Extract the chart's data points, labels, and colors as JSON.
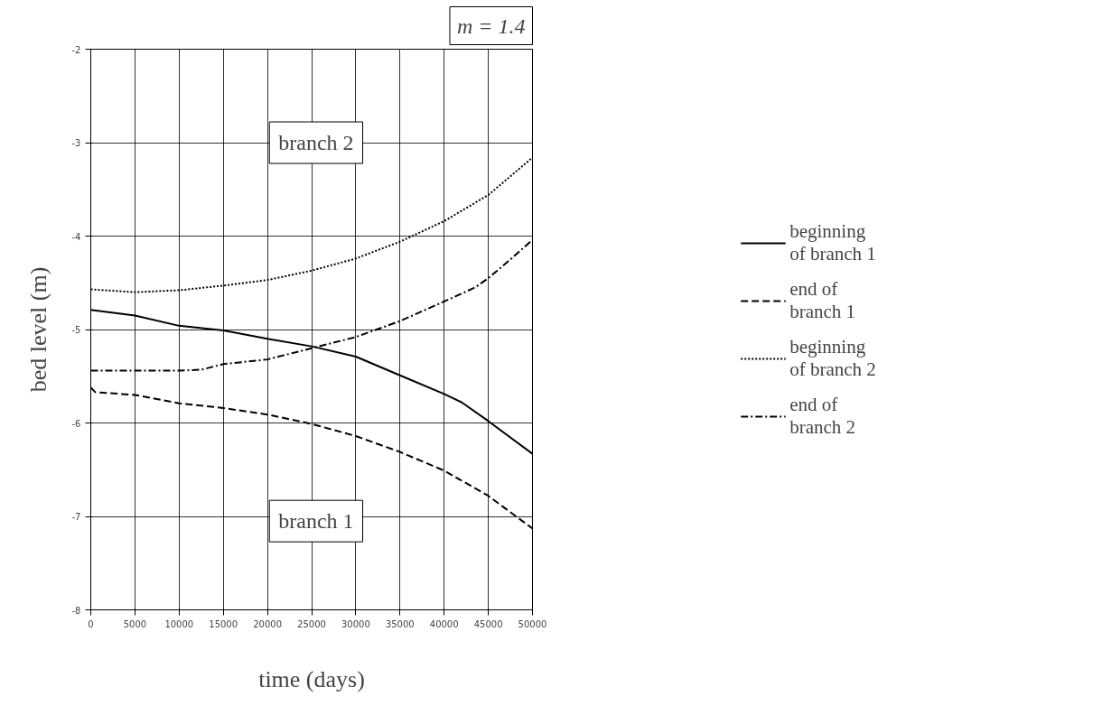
{
  "chart_data": {
    "type": "line",
    "xlabel": "time (days)",
    "ylabel": "bed level (m)",
    "xlim": [
      0,
      50000
    ],
    "xticks": [
      0,
      5000,
      10000,
      15000,
      20000,
      25000,
      30000,
      35000,
      40000,
      45000,
      50000
    ],
    "ylim": [
      -8,
      -2
    ],
    "yticks": [
      -8,
      -7,
      -6,
      -5,
      -4,
      -3,
      -2
    ],
    "grid": true,
    "legend": "right",
    "marker": "none",
    "annotations": [
      "m = 1.4",
      "branch 2",
      "branch 1"
    ],
    "series": [
      {
        "name": "beginning\nof branch 1",
        "color": "#000000",
        "line_style": "solid",
        "x": [
          0,
          5000,
          10000,
          15000,
          20000,
          25000,
          30000,
          35000,
          40000,
          42000,
          45000,
          50000
        ],
        "values": [
          -4.79,
          -4.85,
          -4.96,
          -5.01,
          -5.1,
          -5.18,
          -5.29,
          -5.49,
          -5.69,
          -5.78,
          -5.98,
          -6.33
        ]
      },
      {
        "name": "end of\nbranch 1",
        "color": "#000000",
        "line_style": "dashed",
        "x": [
          0,
          500,
          5000,
          10000,
          15000,
          20000,
          25000,
          30000,
          35000,
          40000,
          45000,
          50000
        ],
        "values": [
          -5.62,
          -5.67,
          -5.7,
          -5.79,
          -5.84,
          -5.91,
          -6.01,
          -6.14,
          -6.31,
          -6.51,
          -6.78,
          -7.13
        ]
      },
      {
        "name": "beginning\nof branch 2",
        "color": "#000000",
        "line_style": "dotted",
        "x": [
          0,
          5000,
          10000,
          15000,
          20000,
          25000,
          30000,
          35000,
          40000,
          45000,
          50000
        ],
        "values": [
          -4.57,
          -4.6,
          -4.58,
          -4.53,
          -4.47,
          -4.37,
          -4.24,
          -4.06,
          -3.84,
          -3.56,
          -3.16
        ]
      },
      {
        "name": "end of\nbranch 2",
        "color": "#000000",
        "line_style": "dashdot",
        "x": [
          0,
          5000,
          10000,
          12500,
          15000,
          20000,
          25000,
          30000,
          35000,
          40000,
          43500,
          45000,
          47500,
          50000
        ],
        "values": [
          -5.44,
          -5.44,
          -5.44,
          -5.43,
          -5.37,
          -5.32,
          -5.2,
          -5.08,
          -4.91,
          -4.7,
          -4.55,
          -4.45,
          -4.25,
          -4.04
        ]
      }
    ]
  }
}
